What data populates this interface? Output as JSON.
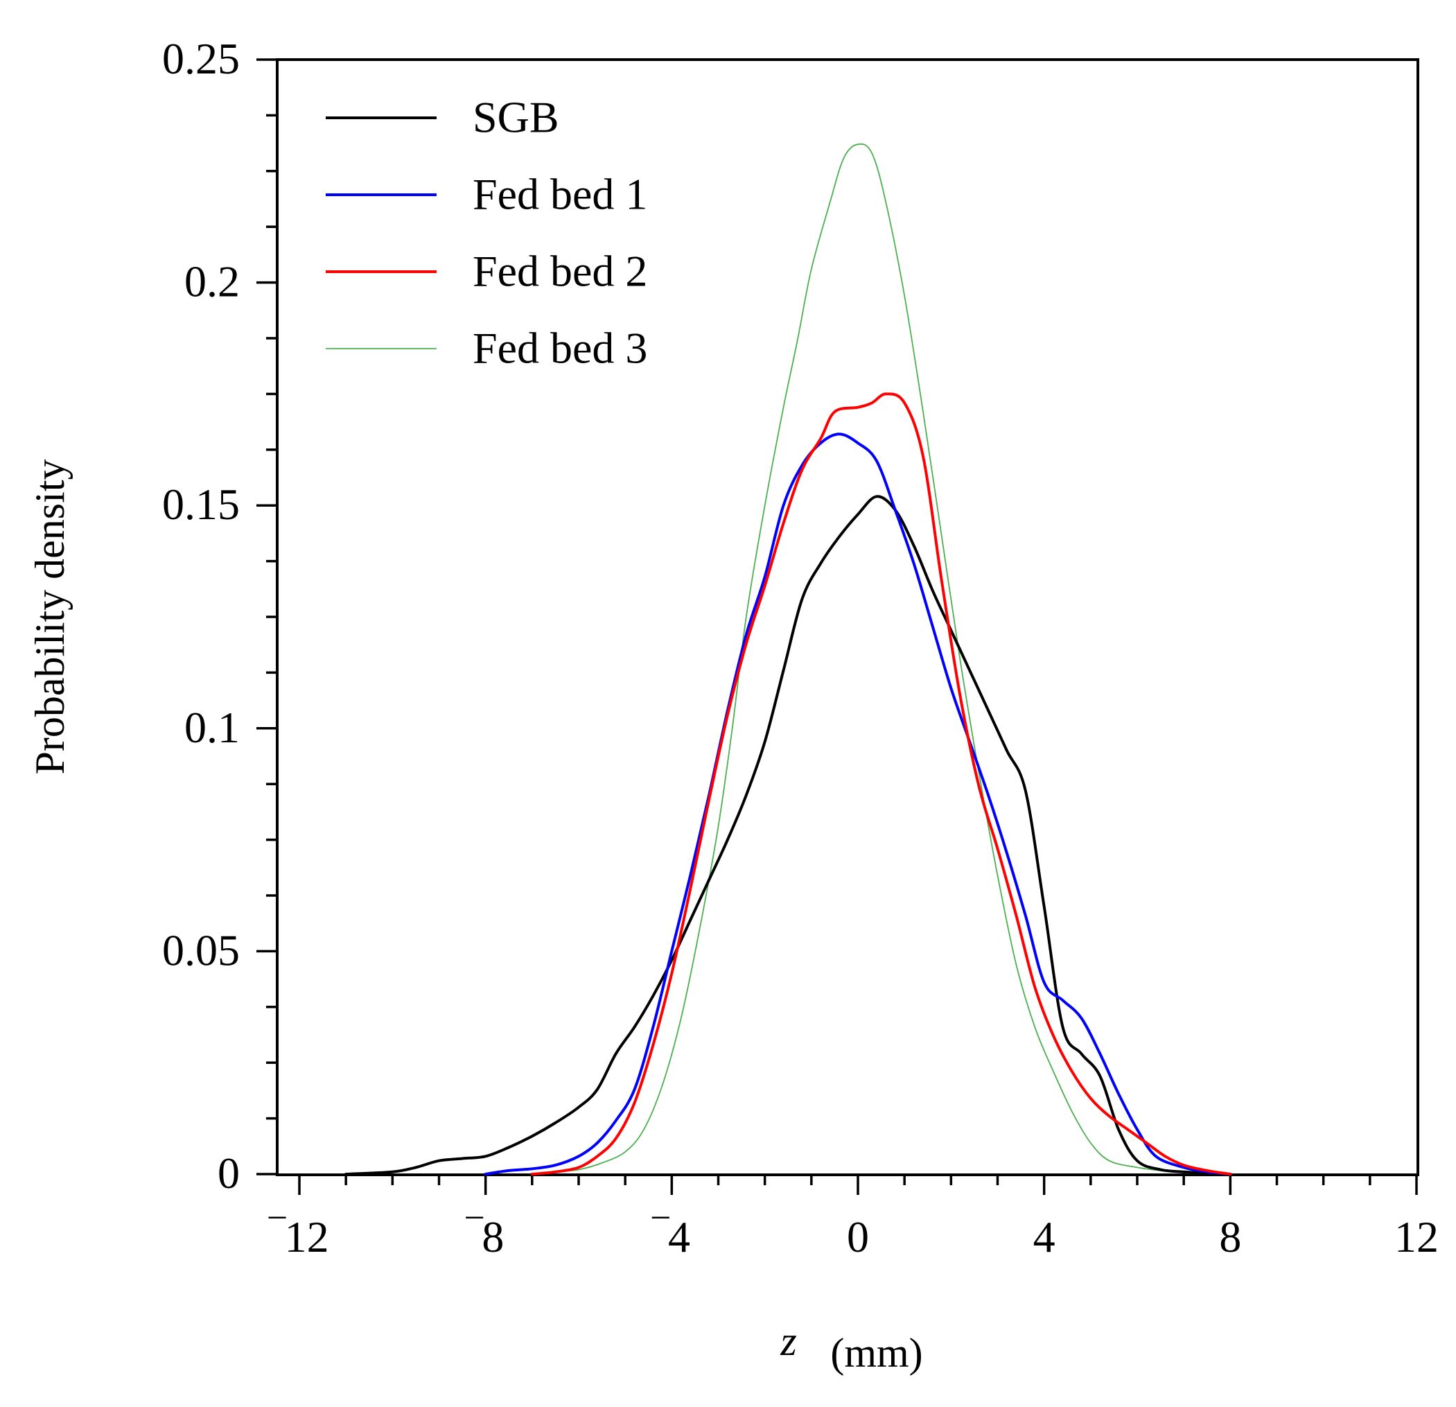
{
  "chart_data": {
    "type": "line",
    "title": "",
    "xlabel": "z",
    "xlabel_unit": "(mm)",
    "ylabel": "Probability density",
    "xlim": [
      -12,
      12
    ],
    "ylim": [
      0,
      0.25
    ],
    "x_ticks": [
      -12,
      -8,
      -4,
      0,
      4,
      8,
      12
    ],
    "x_tick_labels": [
      "‾12",
      "‾8",
      "‾4",
      "0",
      "4",
      "8",
      "12"
    ],
    "y_ticks": [
      0,
      0.05,
      0.1,
      0.15,
      0.2,
      0.25
    ],
    "y_tick_labels": [
      "0",
      "0.05",
      "0.1",
      "0.15",
      "0.2",
      "0.25"
    ],
    "grid": false,
    "legend_position": "top-left",
    "series": [
      {
        "name": "SGB",
        "color": "#000000",
        "width": 4,
        "points": [
          [
            -11,
            0
          ],
          [
            -10,
            0.0005
          ],
          [
            -9.5,
            0.0015
          ],
          [
            -9,
            0.003
          ],
          [
            -8.5,
            0.0035
          ],
          [
            -8,
            0.004
          ],
          [
            -7.5,
            0.006
          ],
          [
            -7,
            0.0085
          ],
          [
            -6.5,
            0.0115
          ],
          [
            -6,
            0.015
          ],
          [
            -5.6,
            0.019
          ],
          [
            -5.2,
            0.027
          ],
          [
            -4.8,
            0.033
          ],
          [
            -4.4,
            0.04
          ],
          [
            -4,
            0.048
          ],
          [
            -3.6,
            0.057
          ],
          [
            -3.2,
            0.066
          ],
          [
            -2.8,
            0.075
          ],
          [
            -2.4,
            0.085
          ],
          [
            -2,
            0.097
          ],
          [
            -1.6,
            0.113
          ],
          [
            -1.2,
            0.129
          ],
          [
            -0.8,
            0.137
          ],
          [
            -0.4,
            0.143
          ],
          [
            0,
            0.148
          ],
          [
            0.4,
            0.152
          ],
          [
            0.8,
            0.149
          ],
          [
            1.2,
            0.141
          ],
          [
            1.6,
            0.131
          ],
          [
            2,
            0.122
          ],
          [
            2.4,
            0.113
          ],
          [
            2.8,
            0.104
          ],
          [
            3.2,
            0.095
          ],
          [
            3.6,
            0.086
          ],
          [
            4,
            0.06
          ],
          [
            4.4,
            0.033
          ],
          [
            4.8,
            0.027
          ],
          [
            5.2,
            0.022
          ],
          [
            5.6,
            0.01
          ],
          [
            6,
            0.003
          ],
          [
            6.5,
            0.001
          ],
          [
            7,
            0.0005
          ],
          [
            7.5,
            0.0002
          ],
          [
            8,
            0
          ]
        ]
      },
      {
        "name": "Fed bed 1",
        "color": "#0000ff",
        "width": 4,
        "points": [
          [
            -8,
            0
          ],
          [
            -7.5,
            0.0008
          ],
          [
            -7,
            0.0012
          ],
          [
            -6.5,
            0.002
          ],
          [
            -6,
            0.004
          ],
          [
            -5.6,
            0.007
          ],
          [
            -5.2,
            0.012
          ],
          [
            -4.8,
            0.019
          ],
          [
            -4.4,
            0.033
          ],
          [
            -4,
            0.05
          ],
          [
            -3.6,
            0.067
          ],
          [
            -3.2,
            0.085
          ],
          [
            -2.8,
            0.104
          ],
          [
            -2.4,
            0.121
          ],
          [
            -2,
            0.134
          ],
          [
            -1.6,
            0.15
          ],
          [
            -1.2,
            0.159
          ],
          [
            -0.8,
            0.164
          ],
          [
            -0.4,
            0.166
          ],
          [
            0,
            0.164
          ],
          [
            0.4,
            0.16
          ],
          [
            0.8,
            0.149
          ],
          [
            1.2,
            0.137
          ],
          [
            1.6,
            0.123
          ],
          [
            2,
            0.109
          ],
          [
            2.4,
            0.097
          ],
          [
            2.8,
            0.085
          ],
          [
            3.2,
            0.072
          ],
          [
            3.6,
            0.058
          ],
          [
            4,
            0.043
          ],
          [
            4.4,
            0.039
          ],
          [
            4.8,
            0.035
          ],
          [
            5.2,
            0.027
          ],
          [
            5.6,
            0.018
          ],
          [
            6,
            0.01
          ],
          [
            6.4,
            0.004
          ],
          [
            7,
            0.0015
          ],
          [
            7.5,
            0.0005
          ],
          [
            8,
            0
          ]
        ]
      },
      {
        "name": "Fed bed 2",
        "color": "#ff0000",
        "width": 4,
        "points": [
          [
            -7,
            0
          ],
          [
            -6.5,
            0.0005
          ],
          [
            -6,
            0.0015
          ],
          [
            -5.6,
            0.004
          ],
          [
            -5.2,
            0.008
          ],
          [
            -4.8,
            0.016
          ],
          [
            -4.4,
            0.029
          ],
          [
            -4,
            0.045
          ],
          [
            -3.6,
            0.064
          ],
          [
            -3.2,
            0.084
          ],
          [
            -2.8,
            0.103
          ],
          [
            -2.4,
            0.119
          ],
          [
            -2,
            0.132
          ],
          [
            -1.6,
            0.146
          ],
          [
            -1.2,
            0.158
          ],
          [
            -0.8,
            0.165
          ],
          [
            -0.5,
            0.171
          ],
          [
            0,
            0.172
          ],
          [
            0.3,
            0.173
          ],
          [
            0.6,
            0.175
          ],
          [
            1,
            0.173
          ],
          [
            1.4,
            0.161
          ],
          [
            1.8,
            0.133
          ],
          [
            2.2,
            0.107
          ],
          [
            2.6,
            0.087
          ],
          [
            3,
            0.073
          ],
          [
            3.4,
            0.058
          ],
          [
            3.8,
            0.042
          ],
          [
            4.2,
            0.031
          ],
          [
            4.6,
            0.023
          ],
          [
            5,
            0.017
          ],
          [
            5.4,
            0.013
          ],
          [
            5.8,
            0.01
          ],
          [
            6.2,
            0.007
          ],
          [
            6.6,
            0.004
          ],
          [
            7,
            0.002
          ],
          [
            7.5,
            0.0008
          ],
          [
            8,
            0
          ]
        ]
      },
      {
        "name": "Fed bed 3",
        "color": "#4caf50",
        "width": 1.8,
        "points": [
          [
            -7,
            0
          ],
          [
            -6.5,
            0.0005
          ],
          [
            -6,
            0.001
          ],
          [
            -5.5,
            0.0025
          ],
          [
            -5,
            0.005
          ],
          [
            -4.6,
            0.01
          ],
          [
            -4.2,
            0.02
          ],
          [
            -3.8,
            0.035
          ],
          [
            -3.4,
            0.055
          ],
          [
            -3,
            0.078
          ],
          [
            -2.7,
            0.1
          ],
          [
            -2.4,
            0.125
          ],
          [
            -2,
            0.15
          ],
          [
            -1.6,
            0.172
          ],
          [
            -1.3,
            0.187
          ],
          [
            -1,
            0.203
          ],
          [
            -0.6,
            0.218
          ],
          [
            -0.3,
            0.228
          ],
          [
            0,
            0.231
          ],
          [
            0.3,
            0.229
          ],
          [
            0.6,
            0.218
          ],
          [
            1,
            0.197
          ],
          [
            1.4,
            0.171
          ],
          [
            1.8,
            0.143
          ],
          [
            2.2,
            0.115
          ],
          [
            2.6,
            0.09
          ],
          [
            3,
            0.067
          ],
          [
            3.4,
            0.047
          ],
          [
            3.8,
            0.033
          ],
          [
            4.2,
            0.023
          ],
          [
            4.6,
            0.014
          ],
          [
            5,
            0.007
          ],
          [
            5.4,
            0.003
          ],
          [
            6,
            0.0015
          ],
          [
            6.5,
            0.0008
          ],
          [
            7,
            0.0003
          ],
          [
            8,
            0
          ]
        ]
      }
    ]
  }
}
